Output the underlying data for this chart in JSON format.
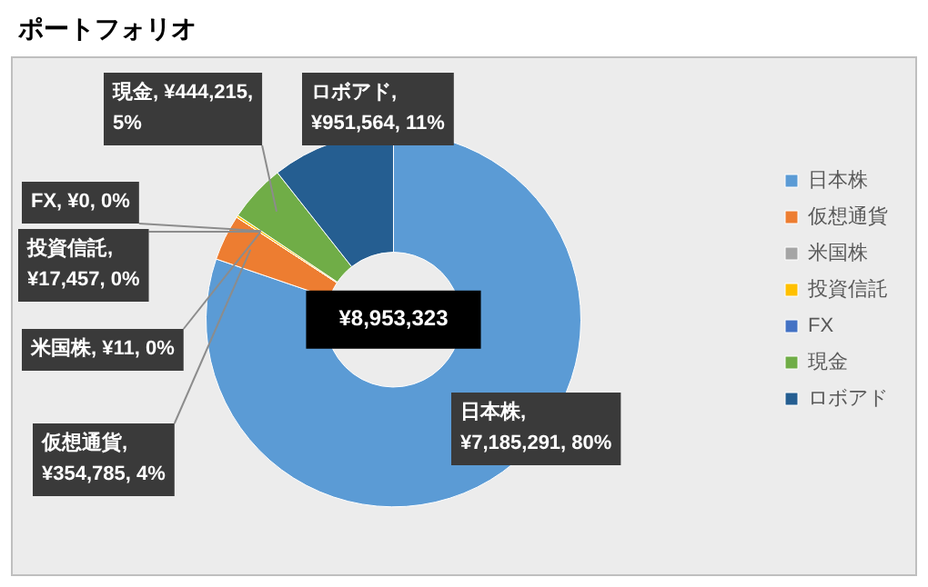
{
  "chart_data": {
    "type": "donut",
    "title": "ポートフォリオ",
    "categories": [
      "日本株",
      "仮想通貨",
      "米国株",
      "投資信託",
      "FX",
      "現金",
      "ロボアド"
    ],
    "values": [
      7185291,
      354785,
      11,
      17457,
      0,
      444215,
      951564
    ],
    "colors": [
      "#5b9bd5",
      "#ed7d31",
      "#a5a5a5",
      "#ffc000",
      "#4472c4",
      "#70ad47",
      "#255e91"
    ],
    "value_labels": [
      "日本株, ¥7,185,291, 80%",
      "仮想通貨, ¥354,785, 4%",
      "米国株, ¥11, 0%",
      "投資信託, ¥17,457, 0%",
      "FX, ¥0, 0%",
      "現金, ¥444,215, 5%",
      "ロボアド, ¥951,564, 11%"
    ],
    "annotations": [
      "¥8,953,323"
    ],
    "legend": "right"
  }
}
